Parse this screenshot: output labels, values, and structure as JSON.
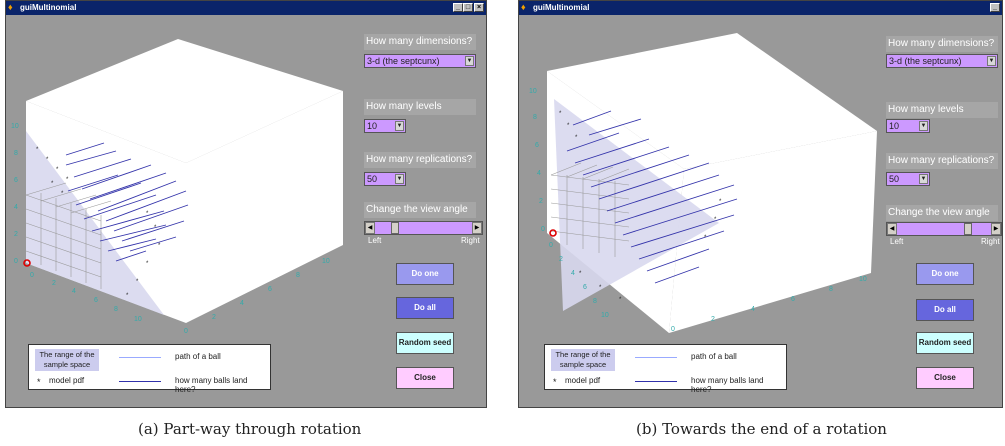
{
  "window_title": "guiMultinomial",
  "controls": {
    "dimensions_label": "How many dimensions?",
    "dimensions_value": "3-d (the septcunx)",
    "levels_label": "How many levels",
    "levels_value": "10",
    "replications_label": "How many replications?",
    "replications_value": "50",
    "view_angle_label": "Change the view angle",
    "slider_left": "Left",
    "slider_right": "Right",
    "do_one": "Do one",
    "do_all": "Do all",
    "random_seed": "Random seed",
    "close": "Close"
  },
  "legend": {
    "range": "The range of the sample space",
    "path": "path of a ball",
    "pdf": "model pdf",
    "land": "how many balls land here?"
  },
  "axis_ticks": {
    "a": [
      "0",
      "2",
      "4",
      "6",
      "8",
      "10"
    ],
    "b": [
      "0",
      "2",
      "4",
      "6",
      "8",
      "10"
    ],
    "c": [
      "0",
      "2",
      "4",
      "6",
      "8",
      "10"
    ]
  },
  "captions": {
    "a": "(a) Part-way through rotation",
    "b": "(b) Towards the end of a rotation"
  },
  "view_angle_position": {
    "a": 0.18,
    "b": 0.78
  },
  "colors": {
    "panel_bg": "#999999",
    "purple_button": "#9999ee",
    "do_all": "#6666dd",
    "random_seed": "#ccffff",
    "close": "#ffccff",
    "popup": "#cc99ff"
  }
}
